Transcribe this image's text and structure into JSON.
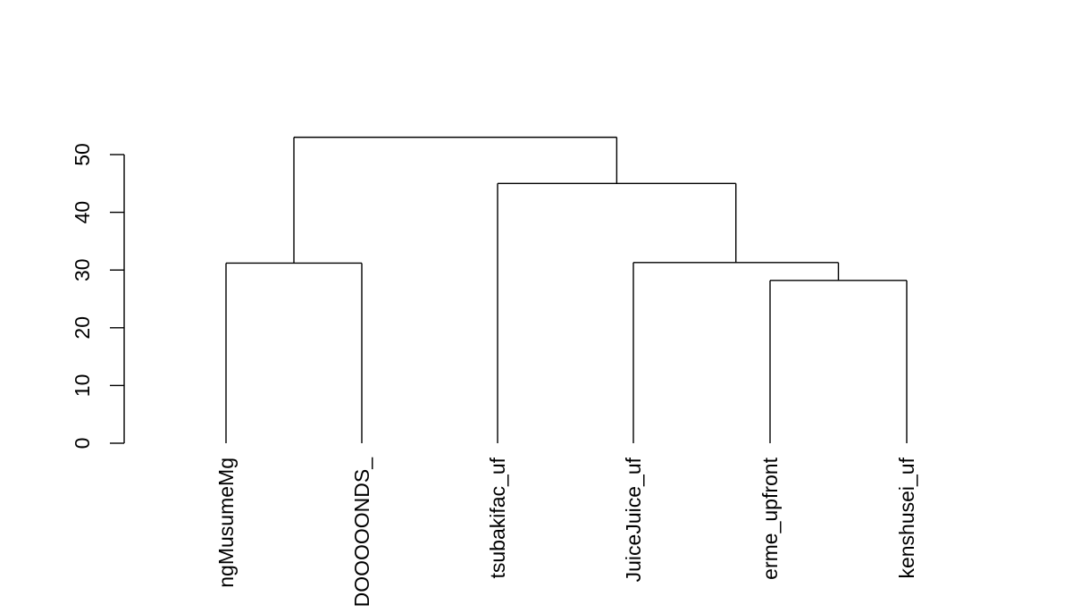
{
  "chart_data": {
    "type": "dendrogram",
    "title": "",
    "xlabel": "",
    "ylabel": "",
    "ylim": [
      0,
      53
    ],
    "yticks": [
      "0",
      "10",
      "20",
      "30",
      "40",
      "50"
    ],
    "leaves": [
      "ngMusumeMg",
      "DOOOOONDS_",
      "tsubakifac_uf",
      "JuiceJuice_uf",
      "erme_upfront",
      "kenshusei_uf"
    ],
    "merges": [
      {
        "left": "L4",
        "right": "L5",
        "height": 28.2
      },
      {
        "left": "L0",
        "right": "L1",
        "height": 31.2
      },
      {
        "left": "L3",
        "right": "M0",
        "height": 31.3
      },
      {
        "left": "L2",
        "right": "M2",
        "height": 45.0
      },
      {
        "left": "M1",
        "right": "M3",
        "height": 53.0
      }
    ]
  }
}
